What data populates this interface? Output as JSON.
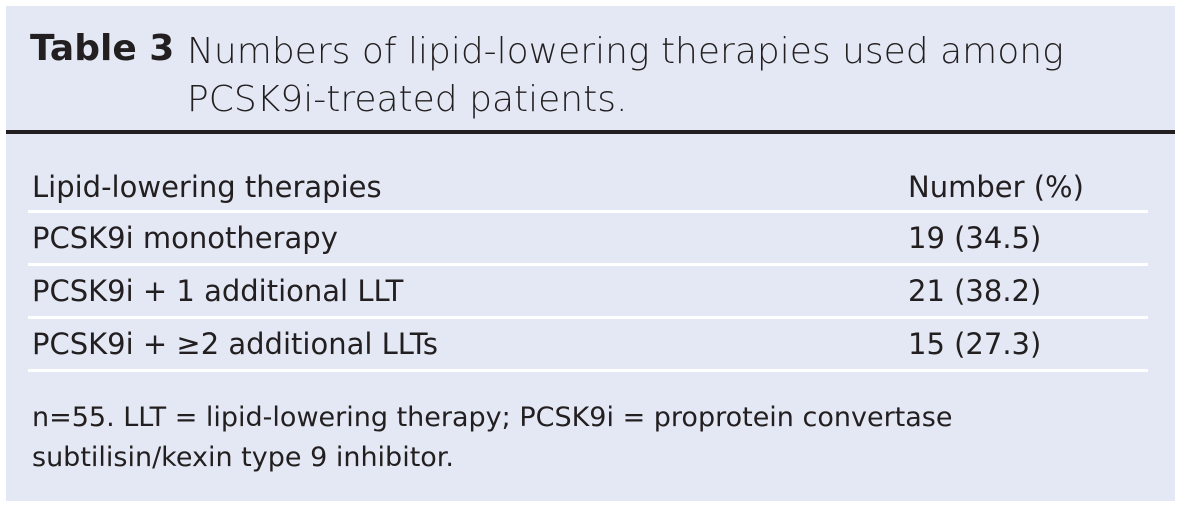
{
  "header": {
    "label": "Table 3",
    "title": "Numbers of lipid-lowering therapies used among PCSK9i-treated patients."
  },
  "table": {
    "columns": [
      "Lipid-lowering therapies",
      "Number (%)"
    ],
    "rows": [
      [
        "PCSK9i monotherapy",
        "19 (34.5)"
      ],
      [
        "PCSK9i + 1 additional LLT",
        "21 (38.2)"
      ],
      [
        "PCSK9i + ≥2 additional LLTs",
        "15 (27.3)"
      ]
    ]
  },
  "footnote": "n=55. LLT = lipid-lowering therapy; PCSK9i = proprotein convertase subtilisin/kexin type 9 inhibitor."
}
